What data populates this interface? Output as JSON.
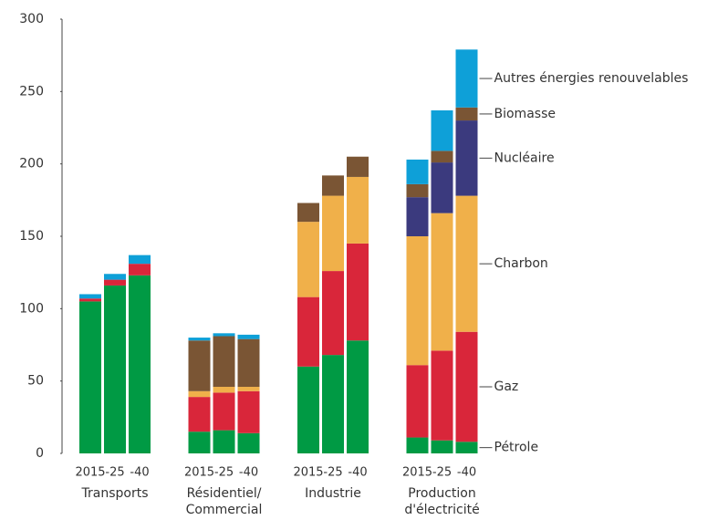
{
  "chart_data": {
    "type": "stacked_bar",
    "categories": [
      "2015",
      "-25",
      "-40",
      "2015",
      "-25",
      "-40",
      "2015",
      "-25",
      "-40",
      "2015",
      "-25",
      "-40"
    ],
    "groups": [
      [
        "Transports"
      ],
      [
        "Résidentiel/",
        "Commercial"
      ],
      [
        "Industrie"
      ],
      [
        "Production",
        "d'électricité"
      ]
    ],
    "series": [
      {
        "name": "Pétrole",
        "color": "#009a44",
        "values": [
          105,
          116,
          123,
          15,
          16,
          14,
          60,
          68,
          78,
          11,
          9,
          8
        ]
      },
      {
        "name": "Gaz",
        "color": "#d9263a",
        "values": [
          2,
          4,
          8,
          24,
          26,
          29,
          48,
          58,
          67,
          50,
          62,
          76
        ]
      },
      {
        "name": "Charbon",
        "color": "#f0b04a",
        "values": [
          0,
          0,
          0,
          4,
          4,
          3,
          52,
          52,
          46,
          89,
          95,
          94
        ]
      },
      {
        "name": "Nucléaire",
        "color": "#3b3a7e",
        "values": [
          0,
          0,
          0,
          0,
          0,
          0,
          0,
          0,
          0,
          27,
          35,
          52
        ]
      },
      {
        "name": "Biomasse",
        "color": "#7a5534",
        "values": [
          0,
          0,
          0,
          35,
          35,
          33,
          13,
          14,
          14,
          9,
          8,
          9
        ]
      },
      {
        "name": "Autres énergies renouvelables",
        "color": "#0ea0d8",
        "values": [
          3,
          4,
          6,
          2,
          2,
          3,
          0,
          0,
          0,
          17,
          28,
          40
        ]
      }
    ],
    "ylim": [
      0,
      300
    ],
    "yticks": [
      0,
      50,
      100,
      150,
      200,
      250,
      300
    ],
    "grid": false
  }
}
